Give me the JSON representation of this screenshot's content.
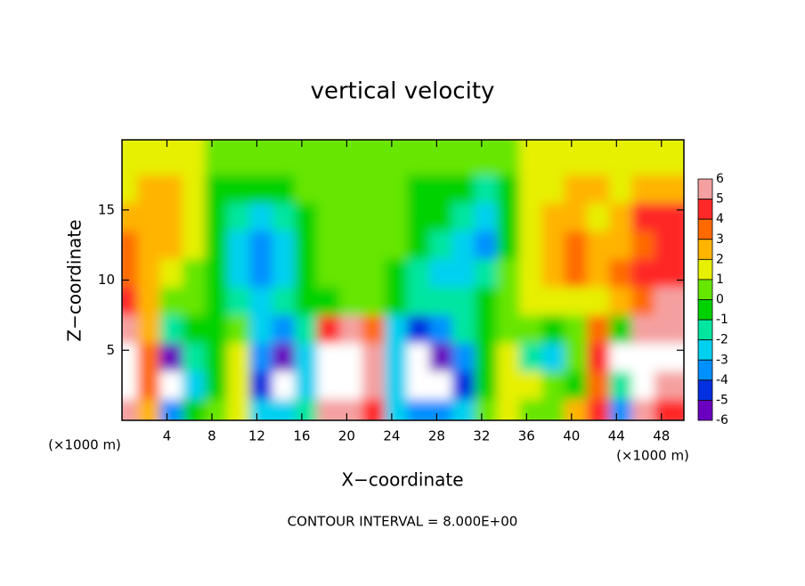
{
  "chart_data": {
    "type": "heatmap",
    "title": "vertical velocity",
    "x_label": "X−coordinate",
    "y_label": "Z−coordinate",
    "x_unit": "(×1000 m)",
    "y_unit": "(×1000 m)",
    "footer": "CONTOUR INTERVAL = 8.000E+00",
    "xlim": [
      0,
      50
    ],
    "ylim": [
      0,
      20
    ],
    "xticks": [
      4,
      8,
      12,
      16,
      20,
      24,
      28,
      32,
      36,
      40,
      44,
      48
    ],
    "yticks": [
      5,
      10,
      15
    ],
    "x": [
      1,
      3,
      5,
      7,
      9,
      11,
      13,
      15,
      17,
      19,
      21,
      23,
      25,
      27,
      29,
      31,
      33,
      35,
      37,
      39,
      41,
      43,
      45,
      47,
      49
    ],
    "y": [
      1,
      3,
      5,
      7,
      9,
      11,
      13,
      15,
      17,
      19
    ],
    "z": [
      [
        5,
        2,
        -4,
        -1,
        0,
        1,
        -3,
        -3,
        -2,
        5,
        6,
        4,
        -3,
        -4,
        -4,
        -3,
        0,
        1,
        0,
        0,
        2,
        4,
        -4,
        5,
        4
      ],
      [
        7,
        3,
        -7,
        -3,
        -1,
        1,
        -5,
        -7,
        -3,
        7,
        8,
        6,
        -3,
        -7,
        -7,
        -5,
        -1,
        1,
        1,
        0,
        -1,
        3,
        -2,
        7,
        5
      ],
      [
        7,
        3,
        -6,
        -2,
        -1,
        1,
        -4,
        -6,
        -3,
        7,
        7,
        5,
        -3,
        -7,
        -6,
        -4,
        -1,
        1,
        -2,
        -3,
        0,
        4,
        7,
        7,
        7
      ],
      [
        5,
        2,
        -2,
        -1,
        -1,
        0,
        -3,
        -4,
        -2,
        4,
        5,
        3,
        -3,
        -5,
        -4,
        -2,
        -1,
        0,
        0,
        -1,
        0,
        3,
        -1,
        5,
        6
      ],
      [
        4,
        2,
        0,
        0,
        -1,
        -2,
        -3,
        -2,
        -1,
        -1,
        0,
        0,
        -1,
        -2,
        -2,
        -2,
        -1,
        0,
        1,
        1,
        1,
        1,
        2,
        3,
        5
      ],
      [
        3,
        2,
        1,
        0,
        -1,
        -3,
        -4,
        -3,
        -1,
        0,
        0,
        0,
        -1,
        -2,
        -3,
        -3,
        -2,
        0,
        1,
        2,
        3,
        2,
        3,
        4,
        4
      ],
      [
        3,
        2,
        2,
        1,
        -1,
        -3,
        -4,
        -3,
        -1,
        0,
        0,
        0,
        0,
        -1,
        -2,
        -3,
        -4,
        -1,
        1,
        2,
        3,
        2,
        2,
        3,
        4
      ],
      [
        2,
        2,
        2,
        1,
        -1,
        -2,
        -3,
        -2,
        -1,
        0,
        0,
        0,
        0,
        -1,
        -1,
        -2,
        -3,
        -1,
        1,
        2,
        2,
        1,
        2,
        4,
        4
      ],
      [
        1,
        2,
        2,
        1,
        -1,
        -1,
        -1,
        -1,
        0,
        0,
        0,
        0,
        0,
        -1,
        -1,
        -1,
        -2,
        -1,
        1,
        1,
        2,
        2,
        1,
        2,
        2
      ],
      [
        1,
        1,
        1,
        1,
        0,
        0,
        0,
        0,
        0,
        0,
        0,
        0,
        0,
        0,
        0,
        0,
        0,
        0,
        1,
        1,
        1,
        1,
        1,
        1,
        1
      ]
    ],
    "colorbar_ticks": [
      6,
      5,
      4,
      3,
      2,
      1,
      0,
      -1,
      -2,
      -3,
      -4,
      -5,
      -6
    ],
    "colorbar_colors": [
      "#f5a0a0",
      "#ff2828",
      "#ff6a00",
      "#ffb400",
      "#e6f000",
      "#66e600",
      "#00d200",
      "#00e6a0",
      "#00d0f0",
      "#0090ff",
      "#0030e0",
      "#6a00c0"
    ],
    "out_of_range_color": "#ffffff"
  }
}
